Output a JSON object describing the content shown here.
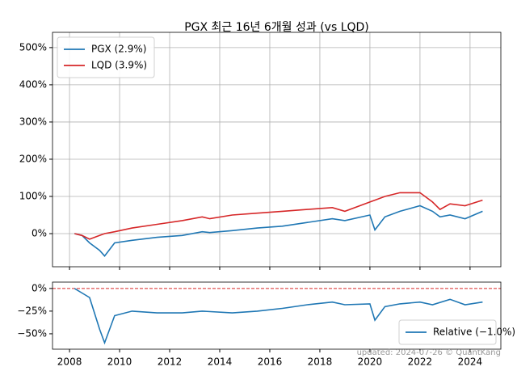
{
  "chart_data": [
    {
      "type": "line",
      "title": "PGX 최근 16년 6개월 성과 (vs LQD)",
      "x": [
        2008.2,
        2008.5,
        2008.8,
        2009.2,
        2009.4,
        2009.8,
        2010.5,
        2011.5,
        2012.5,
        2013.3,
        2013.6,
        2014.5,
        2015.5,
        2016.5,
        2017.5,
        2018.5,
        2019,
        2020,
        2020.2,
        2020.6,
        2021.2,
        2022,
        2022.5,
        2022.8,
        2023.2,
        2023.8,
        2024.5
      ],
      "series": [
        {
          "name": "PGX (2.9%)",
          "color": "#1f77b4",
          "values": [
            0,
            -5,
            -25,
            -45,
            -60,
            -25,
            -18,
            -10,
            -5,
            5,
            3,
            8,
            15,
            20,
            30,
            40,
            35,
            50,
            10,
            45,
            60,
            75,
            60,
            45,
            50,
            40,
            60
          ]
        },
        {
          "name": "LQD (3.9%)",
          "color": "#d62728",
          "values": [
            0,
            -5,
            -15,
            -5,
            0,
            5,
            15,
            25,
            35,
            45,
            40,
            50,
            55,
            60,
            65,
            70,
            60,
            85,
            90,
            100,
            110,
            110,
            85,
            65,
            80,
            75,
            90
          ]
        }
      ],
      "xlim": [
        2007.32,
        2025.23
      ],
      "xticks": [
        2008,
        2010,
        2012,
        2014,
        2016,
        2018,
        2020,
        2022,
        2024
      ],
      "ylim": [
        -89,
        541
      ],
      "yticks": [
        {
          "value": 0,
          "label": "0%"
        },
        {
          "value": 100,
          "label": "100%"
        },
        {
          "value": 200,
          "label": "200%"
        },
        {
          "value": 300,
          "label": "300%"
        },
        {
          "value": 400,
          "label": "400%"
        },
        {
          "value": 500,
          "label": "500%"
        }
      ],
      "grid": true,
      "legend": "upper left",
      "show_xtick_labels": false
    },
    {
      "type": "line",
      "x": [
        2008.2,
        2008.5,
        2008.8,
        2009.2,
        2009.4,
        2009.8,
        2010.5,
        2011.5,
        2012.5,
        2013.3,
        2014.5,
        2015.5,
        2016.5,
        2017.5,
        2018.5,
        2019,
        2020,
        2020.2,
        2020.6,
        2021.2,
        2022,
        2022.5,
        2023.2,
        2023.8,
        2024.5
      ],
      "series": [
        {
          "name": "Relative (−1.0%)",
          "color": "#1f77b4",
          "values": [
            0,
            -5,
            -10,
            -45,
            -60,
            -30,
            -25,
            -27,
            -27,
            -25,
            -27,
            -25,
            -22,
            -18,
            -15,
            -18,
            -17,
            -35,
            -20,
            -17,
            -15,
            -18,
            -12,
            -18,
            -15
          ]
        }
      ],
      "xlim": [
        2007.32,
        2025.23
      ],
      "xticks": [
        2008,
        2010,
        2012,
        2014,
        2016,
        2018,
        2020,
        2022,
        2024
      ],
      "ylim": [
        -67,
        7
      ],
      "yticks": [
        {
          "value": 0,
          "label": "0%"
        },
        {
          "value": -25,
          "label": "−25%"
        },
        {
          "value": -50,
          "label": "−50%"
        }
      ],
      "hline": {
        "value": 0,
        "color": "#d62728"
      },
      "grid": false,
      "legend": "lower right",
      "show_xtick_labels": true,
      "annotation": "updated: 2024-07-26 © QuantKang"
    }
  ]
}
